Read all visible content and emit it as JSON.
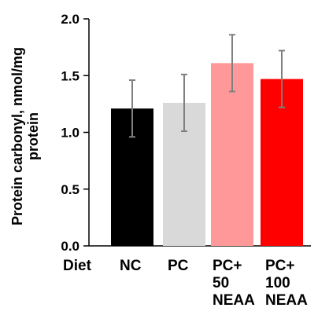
{
  "chart_data": {
    "type": "bar",
    "ylabel": [
      "Protein carbonyl, nmol/mg",
      "protein"
    ],
    "xlabel": "Diet",
    "categories": [
      [
        "NC"
      ],
      [
        "PC"
      ],
      [
        "PC+",
        "50",
        "NEAA"
      ],
      [
        "PC+",
        "100",
        "NEAA"
      ]
    ],
    "values": [
      1.21,
      1.26,
      1.61,
      1.47
    ],
    "errors": [
      0.25,
      0.25,
      0.25,
      0.25
    ],
    "colors": [
      "#000000",
      "#d9d9d9",
      "#ff9999",
      "#ff0000"
    ],
    "ylim": [
      0,
      2.0
    ],
    "yticks": [
      "0.0",
      "0.5",
      "1.0",
      "1.5",
      "2.0"
    ],
    "grid": false
  }
}
